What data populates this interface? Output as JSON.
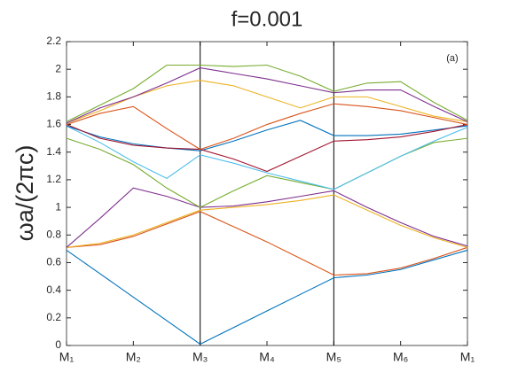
{
  "chart_data": {
    "type": "line",
    "title": "f=0.001",
    "y_label": "ωa/(2πc)",
    "annotation": "(a)",
    "x": [
      0,
      0.5,
      1,
      1.5,
      2,
      2.5,
      3,
      3.5,
      4,
      4.5,
      5,
      5.5,
      6
    ],
    "xlim": [
      0,
      6
    ],
    "xticks": [
      {
        "value": 0,
        "label": "M₁"
      },
      {
        "value": 1,
        "label": "M₂"
      },
      {
        "value": 2,
        "label": "M₃"
      },
      {
        "value": 3,
        "label": "M₄"
      },
      {
        "value": 4,
        "label": "M₅"
      },
      {
        "value": 5,
        "label": "M₆"
      },
      {
        "value": 6,
        "label": "M₁"
      }
    ],
    "ylim": [
      0,
      2.2
    ],
    "yticks": [
      0,
      0.2,
      0.4,
      0.6,
      0.8,
      1,
      1.2,
      1.4,
      1.6,
      1.8,
      2,
      2.2
    ],
    "vlines": [
      2,
      4
    ],
    "grid": false,
    "series": [
      {
        "color": "#0072bd",
        "values": [
          0.69,
          0.52,
          0.35,
          0.18,
          0.01,
          0.13,
          0.25,
          0.37,
          0.49,
          0.51,
          0.55,
          0.62,
          0.69
        ]
      },
      {
        "color": "#d95319",
        "values": [
          0.71,
          0.73,
          0.79,
          0.88,
          0.97,
          0.86,
          0.75,
          0.63,
          0.51,
          0.52,
          0.56,
          0.63,
          0.71
        ]
      },
      {
        "color": "#edb120",
        "values": [
          0.71,
          0.74,
          0.8,
          0.89,
          0.98,
          1.0,
          1.02,
          1.05,
          1.09,
          0.98,
          0.87,
          0.78,
          0.71
        ]
      },
      {
        "color": "#7e2f8e",
        "values": [
          0.71,
          0.92,
          1.14,
          1.08,
          1.0,
          1.01,
          1.04,
          1.08,
          1.12,
          1.0,
          0.89,
          0.79,
          0.72
        ]
      },
      {
        "color": "#77ac30",
        "values": [
          1.5,
          1.42,
          1.31,
          1.14,
          1.0,
          1.12,
          1.23,
          1.18,
          1.13,
          1.25,
          1.37,
          1.47,
          1.5
        ]
      },
      {
        "color": "#4dbeee",
        "values": [
          1.59,
          1.47,
          1.33,
          1.21,
          1.38,
          1.32,
          1.25,
          1.19,
          1.13,
          1.25,
          1.37,
          1.48,
          1.58
        ]
      },
      {
        "color": "#0072bd",
        "values": [
          1.59,
          1.51,
          1.46,
          1.43,
          1.41,
          1.48,
          1.56,
          1.63,
          1.52,
          1.52,
          1.53,
          1.56,
          1.59
        ]
      },
      {
        "color": "#a2142f",
        "values": [
          1.6,
          1.5,
          1.45,
          1.43,
          1.42,
          1.35,
          1.26,
          1.37,
          1.48,
          1.49,
          1.51,
          1.55,
          1.6
        ]
      },
      {
        "color": "#d95319",
        "values": [
          1.6,
          1.68,
          1.73,
          1.57,
          1.42,
          1.5,
          1.6,
          1.68,
          1.75,
          1.73,
          1.7,
          1.65,
          1.6
        ]
      },
      {
        "color": "#edb120",
        "values": [
          1.61,
          1.7,
          1.8,
          1.88,
          1.92,
          1.88,
          1.8,
          1.72,
          1.8,
          1.8,
          1.73,
          1.66,
          1.62
        ]
      },
      {
        "color": "#7e2f8e",
        "values": [
          1.61,
          1.72,
          1.8,
          1.9,
          2.01,
          1.97,
          1.93,
          1.88,
          1.83,
          1.85,
          1.85,
          1.73,
          1.62
        ]
      },
      {
        "color": "#77ac30",
        "values": [
          1.62,
          1.74,
          1.86,
          2.03,
          2.03,
          2.02,
          2.03,
          1.95,
          1.84,
          1.9,
          1.91,
          1.76,
          1.63
        ]
      }
    ]
  }
}
